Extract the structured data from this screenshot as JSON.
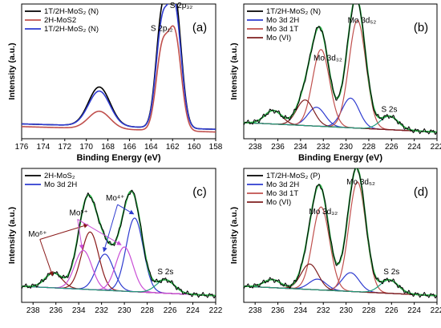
{
  "figure": {
    "panels": [
      {
        "id": "a",
        "tag": "(a)",
        "xlabel": "Binding Energy (eV)",
        "ylabel": "Intensity (a.u.)",
        "xlim": [
          176,
          158
        ],
        "x_ticks": [
          176,
          174,
          172,
          170,
          168,
          166,
          164,
          162,
          160,
          158
        ],
        "legend": [
          {
            "label": "1T/2H-MoS₂ (N)",
            "color": "#000000"
          },
          {
            "label": "2H-MoS2",
            "color": "#c0504d"
          },
          {
            "label": "1T/2H-MoS₂ (N)",
            "color": "#2e3bd0"
          }
        ],
        "annotations": [
          {
            "text": "S 2p₁₂",
            "x": 163.0,
            "y": 0.8
          },
          {
            "text": "S 2p₃₂",
            "x": 161.2,
            "y": 0.97
          }
        ]
      },
      {
        "id": "b",
        "tag": "(b)",
        "xlabel": "Binding Energy (eV)",
        "ylabel": "Intensity (a.u.)",
        "xlim": [
          239,
          222
        ],
        "x_ticks": [
          238,
          236,
          234,
          232,
          230,
          228,
          226,
          224,
          222
        ],
        "legend": [
          {
            "label": "1T/2H-MoS₂ (N)",
            "color": "#000000"
          },
          {
            "label": "Mo 3d 2H",
            "color": "#2e3bd0"
          },
          {
            "label": "Mo 3d 1T",
            "color": "#c0504d"
          },
          {
            "label": "Mo (VI)",
            "color": "#7f1f1f"
          }
        ],
        "annotations": [
          {
            "text": "Mo 3d₃₂",
            "x": 231.6,
            "y": 0.58
          },
          {
            "text": "Mo 3d₅₂",
            "x": 228.6,
            "y": 0.86
          },
          {
            "text": "S 2s",
            "x": 226.2,
            "y": 0.2
          }
        ]
      },
      {
        "id": "c",
        "tag": "(c)",
        "xlabel": "",
        "ylabel": "Intensity (a.u.)",
        "xlim": [
          239,
          222
        ],
        "x_ticks": [
          238,
          236,
          234,
          232,
          230,
          228,
          226,
          224,
          222
        ],
        "legend": [
          {
            "label": "2H-MoS₂",
            "color": "#000000"
          },
          {
            "label": "Mo 3d 2H",
            "color": "#2e3bd0"
          }
        ],
        "annotations": [
          {
            "text": "Mo⁶⁺",
            "x": 237.6,
            "y": 0.49
          },
          {
            "text": "Mo⁵⁺",
            "x": 234.0,
            "y": 0.65
          },
          {
            "text": "Mo⁴⁺",
            "x": 230.8,
            "y": 0.76
          },
          {
            "text": "S 2s",
            "x": 226.4,
            "y": 0.21
          }
        ]
      },
      {
        "id": "d",
        "tag": "(d)",
        "xlabel": "",
        "ylabel": "Intensity (a.u.)",
        "xlim": [
          239,
          222
        ],
        "x_ticks": [
          238,
          236,
          234,
          232,
          230,
          228,
          226,
          224,
          222
        ],
        "legend": [
          {
            "label": "1T/2H-MoS₂ (P)",
            "color": "#000000"
          },
          {
            "label": "Mo 3d 2H",
            "color": "#2e3bd0"
          },
          {
            "label": "Mo 3d 1T",
            "color": "#c0504d"
          },
          {
            "label": "Mo (VI)",
            "color": "#7f1f1f"
          }
        ],
        "annotations": [
          {
            "text": "Mo 3d₃₂",
            "x": 232.0,
            "y": 0.66
          },
          {
            "text": "Mo 3d₅₂",
            "x": 228.7,
            "y": 0.88
          },
          {
            "text": "S 2s",
            "x": 226.0,
            "y": 0.21
          }
        ]
      }
    ]
  },
  "chart_data": [
    {
      "type": "line",
      "panel": "a",
      "x_unit": "Binding Energy (eV)",
      "series": [
        {
          "name": "1T/2H-MoS₂ (N)",
          "color": "#000000",
          "peaks": [
            {
              "center": 168.8,
              "height": 0.29
            },
            {
              "center": 163.0,
              "height": 0.78
            },
            {
              "center": 161.8,
              "height": 0.96
            }
          ],
          "baseline": 0.07
        },
        {
          "name": "2H-MoS2",
          "color": "#c0504d",
          "peaks": [
            {
              "center": 168.8,
              "height": 0.13
            },
            {
              "center": 163.0,
              "height": 0.56
            },
            {
              "center": 161.8,
              "height": 0.71
            }
          ],
          "baseline": 0.05
        },
        {
          "name": "1T/2H-MoS₂ (N)",
          "color": "#2e3bd0",
          "peaks": [
            {
              "center": 168.8,
              "height": 0.26
            },
            {
              "center": 163.0,
              "height": 0.71
            },
            {
              "center": 161.8,
              "height": 0.88
            }
          ],
          "baseline": 0.07
        }
      ]
    },
    {
      "type": "line",
      "panel": "b",
      "series": [
        {
          "name": "1T/2H-MoS₂ (N)",
          "color": "#000000"
        },
        {
          "name": "Mo 3d 2H",
          "color": "#2e3bd0",
          "peaks": [
            {
              "center": 232.6,
              "height": 0.14
            },
            {
              "center": 229.6,
              "height": 0.22
            }
          ]
        },
        {
          "name": "Mo 3d 1T",
          "color": "#c0504d",
          "peaks": [
            {
              "center": 232.2,
              "height": 0.57
            },
            {
              "center": 229.0,
              "height": 0.8
            }
          ]
        },
        {
          "name": "Mo (VI)",
          "color": "#7f1f1f",
          "peaks": [
            {
              "center": 236.4,
              "height": 0.1
            },
            {
              "center": 233.6,
              "height": 0.19
            }
          ]
        },
        {
          "color": "#1e9c7a",
          "peaks": [
            {
              "center": 226.2,
              "height": 0.1
            }
          ]
        }
      ]
    },
    {
      "type": "line",
      "panel": "c",
      "series": [
        {
          "name": "2H-MoS₂",
          "color": "#000000"
        },
        {
          "name": "Mo 3d 2H",
          "color": "#2e3bd0",
          "peaks": [
            {
              "center": 231.7,
              "height": 0.27
            },
            {
              "center": 229.1,
              "height": 0.55
            }
          ]
        },
        {
          "color": "#8a1a1a",
          "peaks": [
            {
              "center": 236.2,
              "height": 0.11
            },
            {
              "center": 233.0,
              "height": 0.43
            }
          ]
        },
        {
          "color": "#c94fd6",
          "peaks": [
            {
              "center": 233.6,
              "height": 0.29
            },
            {
              "center": 230.0,
              "height": 0.33
            }
          ]
        },
        {
          "color": "#1e9c7a",
          "peaks": [
            {
              "center": 226.4,
              "height": 0.1
            }
          ]
        }
      ]
    },
    {
      "type": "line",
      "panel": "d",
      "series": [
        {
          "name": "1T/2H-MoS₂ (P)",
          "color": "#000000"
        },
        {
          "name": "Mo 3d 2H",
          "color": "#2e3bd0",
          "peaks": [
            {
              "center": 232.5,
              "height": 0.08
            },
            {
              "center": 229.6,
              "height": 0.14
            }
          ]
        },
        {
          "name": "Mo 3d 1T",
          "color": "#c0504d",
          "peaks": [
            {
              "center": 232.2,
              "height": 0.62
            },
            {
              "center": 229.0,
              "height": 0.82
            }
          ]
        },
        {
          "name": "Mo (VI)",
          "color": "#7f1f1f",
          "peaks": [
            {
              "center": 236.5,
              "height": 0.06
            },
            {
              "center": 233.2,
              "height": 0.19
            }
          ]
        },
        {
          "color": "#1e9c7a",
          "peaks": [
            {
              "center": 226.2,
              "height": 0.1
            }
          ]
        }
      ]
    }
  ]
}
